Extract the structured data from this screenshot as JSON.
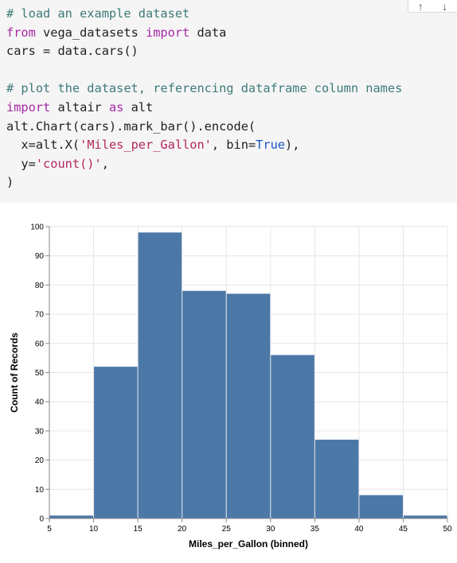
{
  "code_cell": {
    "lines": [
      [
        {
          "t": "# load an example dataset",
          "c": "comment"
        }
      ],
      [
        {
          "t": "from",
          "c": "keyword"
        },
        {
          "t": " vega_datasets ",
          "c": ""
        },
        {
          "t": "import",
          "c": "keyword"
        },
        {
          "t": " data",
          "c": ""
        }
      ],
      [
        {
          "t": "cars = data.cars()",
          "c": ""
        }
      ],
      [
        {
          "t": "",
          "c": ""
        }
      ],
      [
        {
          "t": "# plot the dataset, referencing dataframe column names",
          "c": "comment"
        }
      ],
      [
        {
          "t": "import",
          "c": "keyword"
        },
        {
          "t": " altair ",
          "c": ""
        },
        {
          "t": "as",
          "c": "keyword"
        },
        {
          "t": " alt",
          "c": ""
        }
      ],
      [
        {
          "t": "alt.Chart(cars).mark_bar().encode(",
          "c": ""
        }
      ],
      [
        {
          "t": "  x=alt.X(",
          "c": ""
        },
        {
          "t": "'Miles_per_Gallon'",
          "c": "string"
        },
        {
          "t": ", bin=",
          "c": ""
        },
        {
          "t": "True",
          "c": "const"
        },
        {
          "t": "),",
          "c": ""
        }
      ],
      [
        {
          "t": "  y=",
          "c": ""
        },
        {
          "t": "'count()'",
          "c": "string"
        },
        {
          "t": ",",
          "c": ""
        }
      ],
      [
        {
          "t": ")",
          "c": ""
        }
      ]
    ],
    "toolbar": {
      "move_up_label": "↑",
      "move_down_label": "↓"
    }
  },
  "chart_data": {
    "type": "bar",
    "bins": [
      [
        5,
        10
      ],
      [
        10,
        15
      ],
      [
        15,
        20
      ],
      [
        20,
        25
      ],
      [
        25,
        30
      ],
      [
        30,
        35
      ],
      [
        35,
        40
      ],
      [
        40,
        45
      ],
      [
        45,
        50
      ]
    ],
    "values": [
      1,
      52,
      98,
      78,
      77,
      56,
      27,
      8,
      1
    ],
    "xlabel": "Miles_per_Gallon (binned)",
    "ylabel": "Count of Records",
    "xlim": [
      5,
      50
    ],
    "ylim": [
      0,
      100
    ],
    "xticks": [
      5,
      10,
      15,
      20,
      25,
      30,
      35,
      40,
      45,
      50
    ],
    "yticks": [
      0,
      10,
      20,
      30,
      40,
      50,
      60,
      70,
      80,
      90,
      100
    ],
    "grid": true,
    "bar_color": "#4c78a8"
  }
}
